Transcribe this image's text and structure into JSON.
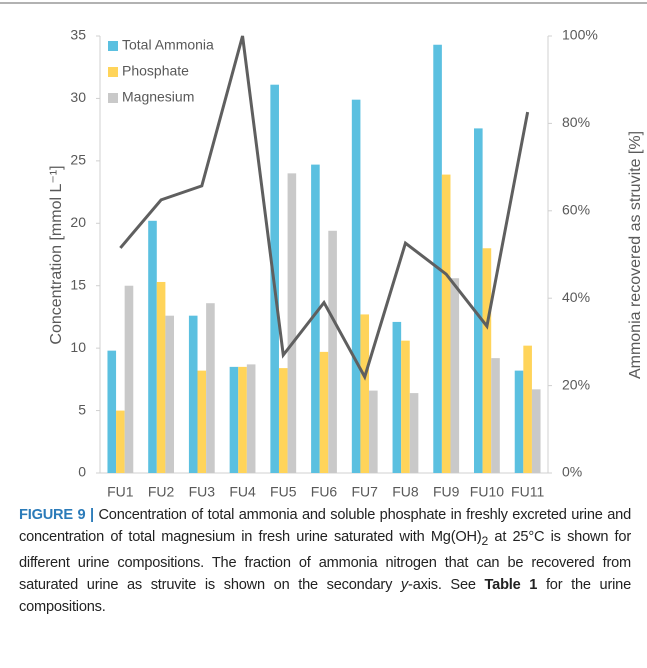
{
  "chart_data": {
    "type": "bar",
    "categories": [
      "FU1",
      "FU2",
      "FU3",
      "FU4",
      "FU5",
      "FU6",
      "FU7",
      "FU8",
      "FU9",
      "FU10",
      "FU11"
    ],
    "series": [
      {
        "name": "Total Ammonia",
        "color": "#5bc0e0",
        "values": [
          9.8,
          20.2,
          12.6,
          8.5,
          31.1,
          24.7,
          29.9,
          12.1,
          34.3,
          27.6,
          8.2
        ]
      },
      {
        "name": "Phosphate",
        "color": "#ffd45a",
        "values": [
          5.0,
          15.3,
          8.2,
          8.5,
          8.4,
          9.7,
          12.7,
          10.6,
          23.9,
          18.0,
          10.2
        ]
      },
      {
        "name": "Magnesium",
        "color": "#c9c9c9",
        "values": [
          15.0,
          12.6,
          13.6,
          8.7,
          24.0,
          19.4,
          6.6,
          6.4,
          15.6,
          9.2,
          6.7
        ]
      },
      {
        "type": "line",
        "axis": "y2",
        "color": "#5f5f5f",
        "values": [
          51.5,
          62.5,
          65.7,
          100,
          27,
          39,
          22,
          52.6,
          45.5,
          33.6,
          82.6
        ]
      }
    ],
    "y_label": "Concentration [mmol L⁻¹]",
    "y2_label": "Ammonia recovered as struvite [%]",
    "ylim": [
      0,
      35
    ],
    "yticks": [
      0,
      5,
      10,
      15,
      20,
      25,
      30,
      35
    ],
    "y2lim": [
      0,
      100
    ],
    "y2ticks": [
      {
        "value": 0,
        "label": "0%"
      },
      {
        "value": 20,
        "label": "20%"
      },
      {
        "value": 40,
        "label": "40%"
      },
      {
        "value": 60,
        "label": "60%"
      },
      {
        "value": 80,
        "label": "80%"
      },
      {
        "value": 100,
        "label": "100%"
      }
    ],
    "legend": "upper-left",
    "grid": false
  },
  "caption": [
    "FIGURE 9 |",
    " Concentration of total ammonia and soluble phosphate in freshly excreted urine and concentration of total magnesium in fresh urine saturated with Mg(OH)",
    "2",
    " at 25°C is shown for different urine compositions. The fraction of ammonia nitrogen that can be recovered from saturated urine as struvite is shown on the secondary ",
    "y",
    "-axis. See ",
    "Table 1",
    " for the urine compositions."
  ]
}
